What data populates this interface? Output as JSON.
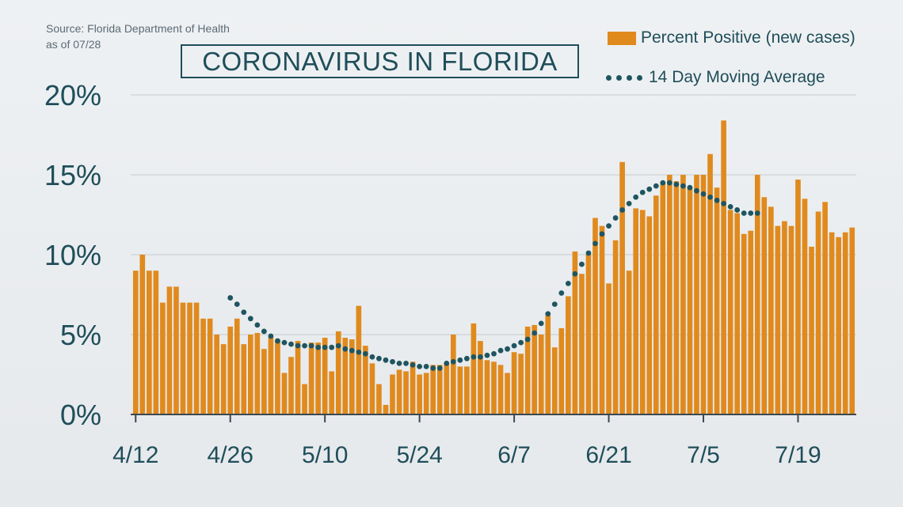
{
  "source": {
    "line1": "Source: Florida Department of Health",
    "line2": "as of 07/28"
  },
  "chart_data": {
    "type": "bar",
    "title": "CORONAVIRUS IN FLORIDA",
    "x_tick_labels": [
      "4/12",
      "4/26",
      "5/10",
      "5/24",
      "6/7",
      "6/21",
      "7/5",
      "7/19"
    ],
    "y_tick_labels": [
      "0%",
      "5%",
      "10%",
      "15%",
      "20%"
    ],
    "ylim": [
      0,
      20
    ],
    "grid": true,
    "legend_position": "top-right",
    "series": [
      {
        "name": "Percent Positive (new cases)",
        "type": "bar",
        "color": "#e08a1e",
        "values": [
          9.0,
          10.0,
          9.0,
          9.0,
          7.0,
          8.0,
          8.0,
          7.0,
          7.0,
          7.0,
          6.0,
          6.0,
          5.0,
          4.4,
          5.5,
          6.0,
          4.4,
          5.0,
          5.1,
          4.1,
          4.8,
          4.7,
          2.6,
          3.6,
          4.6,
          1.9,
          4.5,
          4.5,
          4.8,
          2.7,
          5.2,
          4.8,
          4.7,
          6.8,
          4.3,
          3.2,
          1.9,
          0.6,
          2.5,
          2.8,
          2.7,
          3.3,
          2.5,
          2.6,
          3.1,
          3.1,
          3.2,
          5.0,
          3.0,
          3.0,
          5.7,
          4.6,
          3.4,
          3.3,
          3.1,
          2.6,
          3.9,
          3.8,
          5.5,
          5.6,
          5.0,
          6.2,
          4.2,
          5.4,
          7.4,
          10.2,
          8.8,
          10.0,
          12.3,
          11.8,
          8.2,
          10.9,
          15.8,
          9.0,
          12.9,
          12.8,
          12.4,
          13.7,
          14.5,
          15.0,
          14.6,
          15.0,
          14.2,
          15.0,
          15.0,
          16.3,
          14.2,
          18.4,
          12.8,
          12.6,
          11.3,
          11.5,
          15.0,
          13.6,
          13.0,
          11.8,
          12.1,
          11.8,
          14.7,
          13.5,
          10.5,
          12.7,
          13.3,
          11.4,
          11.1,
          11.4,
          11.7
        ]
      },
      {
        "name": "14 Day Moving Average",
        "type": "dotted-line",
        "color": "#1f5560",
        "start_index": 14,
        "values": [
          7.3,
          6.9,
          6.4,
          6.0,
          5.6,
          5.2,
          4.9,
          4.6,
          4.5,
          4.4,
          4.3,
          4.3,
          4.3,
          4.2,
          4.2,
          4.2,
          4.3,
          4.1,
          4.0,
          3.9,
          3.8,
          3.6,
          3.5,
          3.4,
          3.3,
          3.2,
          3.2,
          3.1,
          3.0,
          3.0,
          2.9,
          2.9,
          3.2,
          3.3,
          3.4,
          3.5,
          3.6,
          3.6,
          3.7,
          3.8,
          4.0,
          4.1,
          4.3,
          4.5,
          4.7,
          5.1,
          5.7,
          6.3,
          6.9,
          7.6,
          8.2,
          8.8,
          9.4,
          10.1,
          10.7,
          11.3,
          11.8,
          12.3,
          12.8,
          13.2,
          13.6,
          13.9,
          14.1,
          14.3,
          14.5,
          14.5,
          14.4,
          14.3,
          14.2,
          14.0,
          13.8,
          13.6,
          13.4,
          13.2,
          13.0,
          12.8,
          12.6,
          12.6,
          12.6
        ]
      }
    ]
  }
}
